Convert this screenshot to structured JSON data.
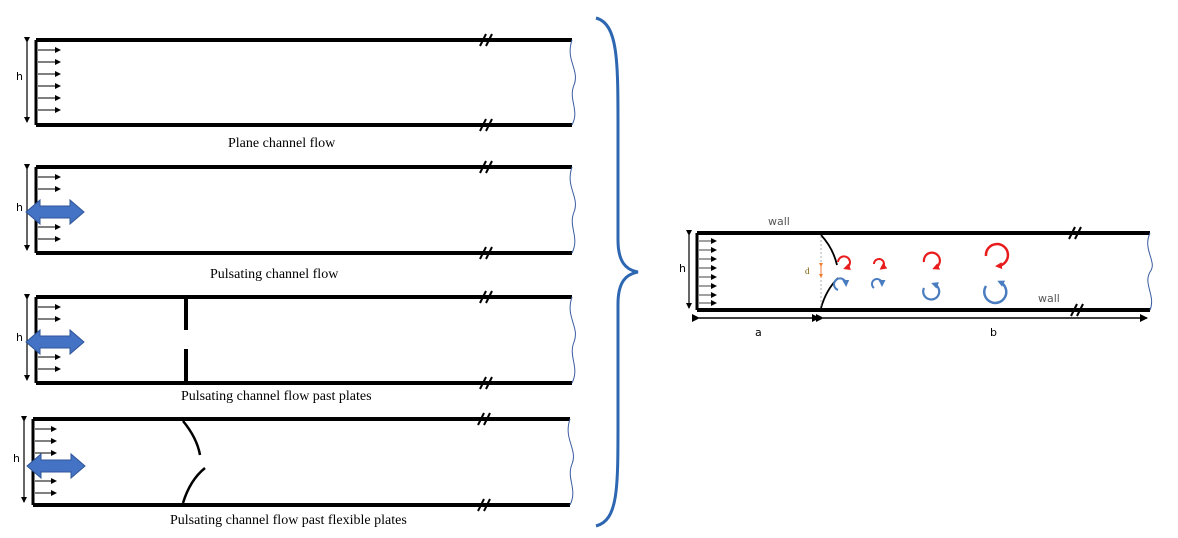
{
  "panels": [
    {
      "caption": "Plane channel flow",
      "height_label": "h"
    },
    {
      "caption": "Pulsating channel flow",
      "height_label": "h"
    },
    {
      "caption": "Pulsating channel flow past plates",
      "height_label": "h"
    },
    {
      "caption": "Pulsating channel flow past flexible plates",
      "height_label": "h"
    }
  ],
  "detail": {
    "height_label": "h",
    "top_wall_label": "wall",
    "bottom_wall_label": "wall",
    "gap_label": "d",
    "length_a_label": "a",
    "length_b_label": "b"
  },
  "colors": {
    "wall": "#000000",
    "pulsation_arrow": "#4472c4",
    "brace": "#2e67b1",
    "vortex_top": "#e81c1c",
    "vortex_bottom": "#4a7cc0",
    "outlet_curve": "#3a5ba0",
    "gap_marker": "#ed7d31"
  }
}
